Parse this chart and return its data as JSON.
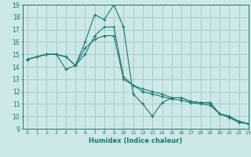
{
  "xlabel": "Humidex (Indice chaleur)",
  "ylabel": "",
  "xlim": [
    -0.5,
    23
  ],
  "ylim": [
    9,
    19
  ],
  "yticks": [
    9,
    10,
    11,
    12,
    13,
    14,
    15,
    16,
    17,
    18,
    19
  ],
  "xticks": [
    0,
    1,
    2,
    3,
    4,
    5,
    6,
    7,
    8,
    9,
    10,
    11,
    12,
    13,
    14,
    15,
    16,
    17,
    18,
    19,
    20,
    21,
    22,
    23
  ],
  "background_color": "#cce8e8",
  "grid_color": "#aacccc",
  "line_color": "#1a7a6a",
  "lines": [
    {
      "x": [
        0,
        1,
        2,
        3,
        4,
        5,
        6,
        7,
        8,
        9,
        10,
        11,
        12,
        13,
        14,
        15,
        16,
        17,
        18,
        19,
        20,
        21,
        22,
        23
      ],
      "y": [
        14.6,
        14.8,
        15.0,
        15.0,
        14.8,
        14.1,
        16.0,
        18.2,
        17.8,
        19.0,
        17.2,
        11.8,
        11.0,
        10.0,
        11.1,
        11.5,
        11.5,
        11.2,
        11.1,
        11.1,
        10.2,
        10.0,
        9.6,
        9.4
      ]
    },
    {
      "x": [
        0,
        1,
        2,
        3,
        4,
        5,
        6,
        7,
        8,
        9,
        10,
        11,
        12,
        13,
        14,
        15,
        16,
        17,
        18,
        19,
        20,
        21,
        22,
        23
      ],
      "y": [
        14.6,
        14.8,
        15.0,
        15.0,
        14.8,
        14.1,
        15.0,
        16.5,
        17.2,
        17.2,
        13.2,
        12.5,
        12.2,
        12.0,
        11.8,
        11.5,
        11.5,
        11.2,
        11.1,
        11.1,
        10.2,
        10.0,
        9.6,
        9.4
      ]
    },
    {
      "x": [
        0,
        1,
        2,
        3,
        4,
        5,
        6,
        7,
        8,
        9,
        10,
        11,
        12,
        13,
        14,
        15,
        16,
        17,
        18,
        19,
        20,
        21,
        22,
        23
      ],
      "y": [
        14.6,
        14.8,
        15.0,
        15.0,
        13.8,
        14.1,
        15.5,
        16.2,
        16.5,
        16.5,
        13.0,
        12.5,
        12.0,
        11.8,
        11.6,
        11.4,
        11.3,
        11.1,
        11.0,
        10.9,
        10.2,
        9.9,
        9.5,
        9.4
      ]
    }
  ]
}
